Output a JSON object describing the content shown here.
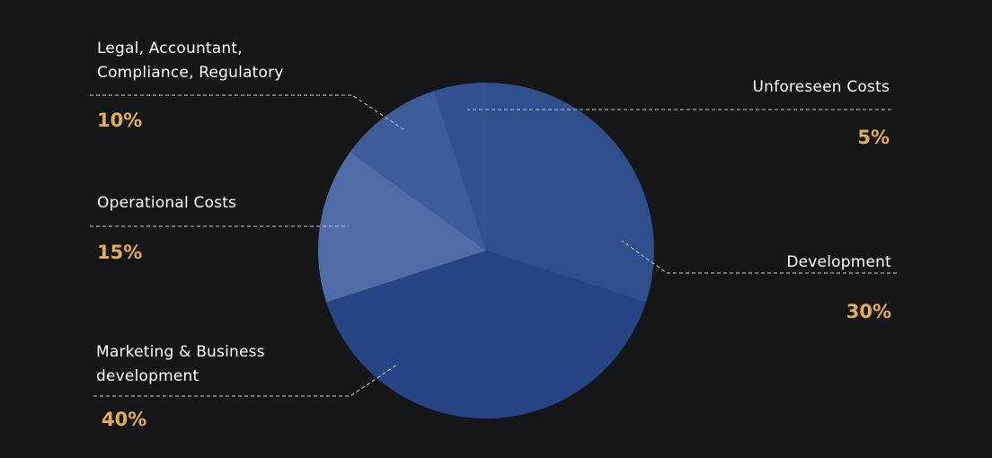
{
  "chart_data": {
    "type": "pie",
    "categories": [
      "Development",
      "Marketing & Business\ndevelopment",
      "Operational Costs",
      "Legal, Accountant,\nCompliance, Regulatory",
      "Unforeseen Costs"
    ],
    "values": [
      30,
      40,
      15,
      10,
      5
    ],
    "value_labels": [
      "30%",
      "40%",
      "15%",
      "10%",
      "5%"
    ],
    "colors": [
      "#2f4f8c",
      "#274585",
      "#4f6ca6",
      "#3f5c9a",
      "#34518f"
    ]
  }
}
